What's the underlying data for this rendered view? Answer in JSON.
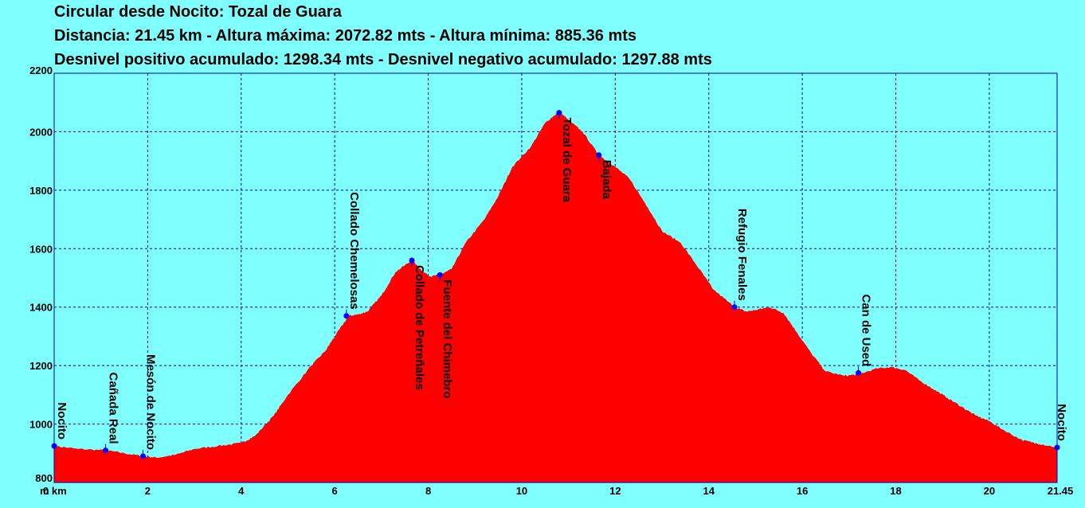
{
  "header": {
    "line1": "Circular desde Nocito: Tozal de Guara",
    "line2": "Distancia: 21.45 km - Altura máxima: 2072.82 mts - Altura mínima: 885.36 mts",
    "line3": "Desnivel positivo acumulado: 1298.34 mts - Desnivel negativo acumulado: 1297.88 mts"
  },
  "colors": {
    "background": "#80FFFF",
    "fill": "#FF0000",
    "grid": "#0000C0",
    "marker": "#0000FF"
  },
  "chart_data": {
    "type": "area",
    "title": "Circular desde Nocito: Tozal de Guara",
    "xlabel": "",
    "ylabel": "",
    "xlim": [
      0,
      21.45
    ],
    "ylim": [
      800,
      2200
    ],
    "grid": true,
    "x_ticks": [
      "0 km",
      "2",
      "4",
      "6",
      "8",
      "10",
      "12",
      "14",
      "16",
      "18",
      "20",
      "21.45"
    ],
    "x_tick_values": [
      0,
      2,
      4,
      6,
      8,
      10,
      12,
      14,
      16,
      18,
      20,
      21.45
    ],
    "y_ticks": [
      "800",
      "1000",
      "1200",
      "1400",
      "1600",
      "1800",
      "2000",
      "2200"
    ],
    "y_tick_values": [
      800,
      1000,
      1200,
      1400,
      1600,
      1800,
      2000,
      2200
    ],
    "y_unit": "m",
    "x": [
      0,
      0.5,
      1.1,
      1.5,
      1.9,
      2.2,
      2.6,
      3.0,
      3.5,
      4.0,
      4.3,
      4.7,
      5.0,
      5.5,
      5.8,
      6.0,
      6.3,
      6.5,
      6.7,
      7.0,
      7.3,
      7.65,
      7.9,
      8.05,
      8.25,
      8.5,
      8.8,
      9.2,
      9.5,
      9.8,
      10.2,
      10.5,
      10.8,
      11.0,
      11.3,
      11.65,
      12.0,
      12.3,
      12.7,
      13.0,
      13.4,
      13.8,
      14.1,
      14.55,
      14.8,
      15.0,
      15.3,
      15.6,
      15.9,
      16.2,
      16.5,
      16.9,
      17.2,
      17.6,
      17.9,
      18.2,
      18.5,
      18.8,
      19.1,
      19.4,
      19.7,
      20.0,
      20.3,
      20.7,
      21.0,
      21.45
    ],
    "y": [
      925,
      915,
      910,
      900,
      890,
      885,
      895,
      915,
      925,
      935,
      960,
      1030,
      1100,
      1200,
      1250,
      1300,
      1370,
      1375,
      1385,
      1440,
      1520,
      1560,
      1520,
      1505,
      1510,
      1530,
      1620,
      1700,
      1780,
      1880,
      1950,
      2030,
      2070,
      2040,
      2000,
      1920,
      1880,
      1840,
      1740,
      1660,
      1620,
      1530,
      1460,
      1400,
      1385,
      1390,
      1400,
      1380,
      1310,
      1240,
      1180,
      1165,
      1170,
      1190,
      1195,
      1185,
      1150,
      1120,
      1090,
      1060,
      1030,
      1010,
      980,
      945,
      935,
      920
    ],
    "waypoints": [
      {
        "name": "Nocito",
        "x": 0,
        "y": 925
      },
      {
        "name": "Cañada Real",
        "x": 1.1,
        "y": 910
      },
      {
        "name": "Mesón de Nocito",
        "x": 1.9,
        "y": 890
      },
      {
        "name": "Collado Chemelosas",
        "x": 6.25,
        "y": 1370
      },
      {
        "name": "Collado de Petreñales",
        "x": 7.65,
        "y": 1560
      },
      {
        "name": "Fuente del Chimebro",
        "x": 8.25,
        "y": 1510
      },
      {
        "name": "Tozal de Guara",
        "x": 10.8,
        "y": 2065
      },
      {
        "name": "Bajada",
        "x": 11.65,
        "y": 1920
      },
      {
        "name": "Refugio Fenales",
        "x": 14.55,
        "y": 1400
      },
      {
        "name": "Can de Used",
        "x": 17.2,
        "y": 1175
      },
      {
        "name": "Nocito",
        "x": 21.45,
        "y": 920
      }
    ]
  }
}
